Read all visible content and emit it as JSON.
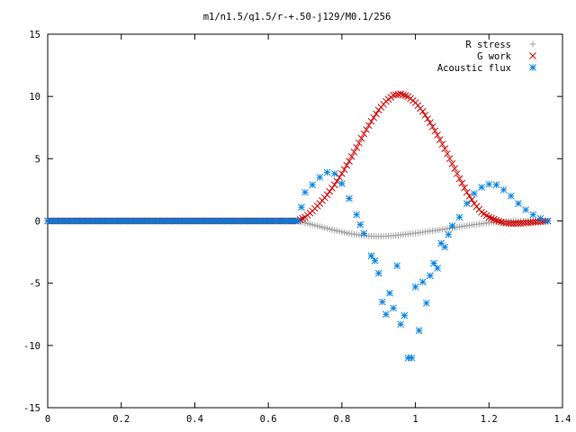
{
  "chart_data": {
    "type": "scatter",
    "title": "m1/n1.5/q1.5/r-+.50-j129/M0.1/256",
    "xlabel": "",
    "ylabel": "",
    "xlim": [
      0,
      1.4
    ],
    "ylim": [
      -15,
      15
    ],
    "x_ticks": [
      "0",
      "0.2",
      "0.4",
      "0.6",
      "0.8",
      "1",
      "1.2",
      "1.4"
    ],
    "y_ticks": [
      "15",
      "10",
      "5",
      "0",
      "-5",
      "-10",
      "-15"
    ],
    "x_tick_values": [
      0,
      0.2,
      0.4,
      0.6,
      0.8,
      1.0,
      1.2,
      1.4
    ],
    "y_tick_values": [
      15,
      10,
      5,
      0,
      -5,
      -10,
      -15
    ],
    "grid": false,
    "legend_position": "top-right",
    "series": [
      {
        "name": "R stress",
        "marker": "plus",
        "color": "#a0a0a0",
        "points": [
          [
            0.0,
            0
          ],
          [
            0.1,
            0
          ],
          [
            0.2,
            0
          ],
          [
            0.3,
            0
          ],
          [
            0.4,
            0
          ],
          [
            0.5,
            0
          ],
          [
            0.6,
            0
          ],
          [
            0.68,
            0
          ],
          [
            0.7,
            -0.15
          ],
          [
            0.72,
            -0.3
          ],
          [
            0.74,
            -0.45
          ],
          [
            0.76,
            -0.6
          ],
          [
            0.78,
            -0.75
          ],
          [
            0.8,
            -0.88
          ],
          [
            0.82,
            -1.0
          ],
          [
            0.84,
            -1.1
          ],
          [
            0.86,
            -1.18
          ],
          [
            0.88,
            -1.22
          ],
          [
            0.9,
            -1.25
          ],
          [
            0.92,
            -1.22
          ],
          [
            0.94,
            -1.18
          ],
          [
            0.96,
            -1.12
          ],
          [
            0.98,
            -1.05
          ],
          [
            1.0,
            -0.98
          ],
          [
            1.02,
            -0.9
          ],
          [
            1.04,
            -0.82
          ],
          [
            1.06,
            -0.74
          ],
          [
            1.08,
            -0.65
          ],
          [
            1.1,
            -0.56
          ],
          [
            1.12,
            -0.47
          ],
          [
            1.14,
            -0.38
          ],
          [
            1.16,
            -0.3
          ],
          [
            1.18,
            -0.22
          ],
          [
            1.2,
            -0.15
          ],
          [
            1.22,
            -0.1
          ],
          [
            1.24,
            -0.06
          ],
          [
            1.26,
            -0.03
          ],
          [
            1.28,
            -0.01
          ],
          [
            1.3,
            0
          ],
          [
            1.32,
            0
          ],
          [
            1.34,
            0
          ],
          [
            1.36,
            0.02
          ]
        ]
      },
      {
        "name": "G work",
        "marker": "cross",
        "color": "#cc0000",
        "points": [
          [
            0.0,
            0
          ],
          [
            0.1,
            0
          ],
          [
            0.2,
            0
          ],
          [
            0.3,
            0
          ],
          [
            0.4,
            0
          ],
          [
            0.5,
            0
          ],
          [
            0.6,
            0
          ],
          [
            0.68,
            0
          ],
          [
            0.7,
            0.3
          ],
          [
            0.72,
            0.8
          ],
          [
            0.74,
            1.4
          ],
          [
            0.76,
            2.1
          ],
          [
            0.78,
            2.9
          ],
          [
            0.8,
            3.8
          ],
          [
            0.82,
            4.8
          ],
          [
            0.84,
            5.9
          ],
          [
            0.86,
            7.0
          ],
          [
            0.88,
            8.0
          ],
          [
            0.9,
            8.9
          ],
          [
            0.92,
            9.6
          ],
          [
            0.94,
            10.1
          ],
          [
            0.96,
            10.2
          ],
          [
            0.98,
            10.0
          ],
          [
            1.0,
            9.5
          ],
          [
            1.02,
            8.8
          ],
          [
            1.04,
            7.9
          ],
          [
            1.06,
            6.9
          ],
          [
            1.08,
            5.8
          ],
          [
            1.1,
            4.6
          ],
          [
            1.12,
            3.4
          ],
          [
            1.14,
            2.3
          ],
          [
            1.16,
            1.4
          ],
          [
            1.18,
            0.7
          ],
          [
            1.2,
            0.3
          ],
          [
            1.22,
            0.05
          ],
          [
            1.24,
            -0.15
          ],
          [
            1.26,
            -0.2
          ],
          [
            1.28,
            -0.2
          ],
          [
            1.3,
            -0.15
          ],
          [
            1.32,
            -0.1
          ],
          [
            1.34,
            -0.05
          ],
          [
            1.36,
            0
          ]
        ]
      },
      {
        "name": "Acoustic flux",
        "marker": "star",
        "color": "#0080e0",
        "points": [
          [
            0.0,
            0
          ],
          [
            0.05,
            0
          ],
          [
            0.1,
            0
          ],
          [
            0.15,
            0
          ],
          [
            0.2,
            0
          ],
          [
            0.25,
            0
          ],
          [
            0.3,
            0
          ],
          [
            0.35,
            0
          ],
          [
            0.4,
            0
          ],
          [
            0.45,
            0
          ],
          [
            0.5,
            0
          ],
          [
            0.55,
            0
          ],
          [
            0.6,
            0
          ],
          [
            0.65,
            0
          ],
          [
            0.68,
            0
          ],
          [
            0.69,
            1.1
          ],
          [
            0.7,
            2.3
          ],
          [
            0.72,
            2.9
          ],
          [
            0.74,
            3.5
          ],
          [
            0.76,
            3.9
          ],
          [
            0.78,
            3.8
          ],
          [
            0.8,
            3.0
          ],
          [
            0.82,
            1.8
          ],
          [
            0.84,
            0.5
          ],
          [
            0.85,
            -0.3
          ],
          [
            0.86,
            -1.0
          ],
          [
            0.88,
            -2.8
          ],
          [
            0.89,
            -3.2
          ],
          [
            0.9,
            -4.2
          ],
          [
            0.91,
            -6.5
          ],
          [
            0.92,
            -7.5
          ],
          [
            0.93,
            -5.8
          ],
          [
            0.94,
            -7.0
          ],
          [
            0.95,
            -3.6
          ],
          [
            0.96,
            -8.3
          ],
          [
            0.97,
            -7.6
          ],
          [
            0.98,
            -11.0
          ],
          [
            0.99,
            -11.0
          ],
          [
            1.0,
            -5.3
          ],
          [
            1.01,
            -8.8
          ],
          [
            1.02,
            -4.9
          ],
          [
            1.03,
            -6.6
          ],
          [
            1.04,
            -4.4
          ],
          [
            1.05,
            -3.4
          ],
          [
            1.06,
            -3.8
          ],
          [
            1.07,
            -1.8
          ],
          [
            1.08,
            -2.1
          ],
          [
            1.09,
            -1.1
          ],
          [
            1.1,
            -0.4
          ],
          [
            1.12,
            0.3
          ],
          [
            1.14,
            1.4
          ],
          [
            1.16,
            2.2
          ],
          [
            1.18,
            2.7
          ],
          [
            1.2,
            2.95
          ],
          [
            1.22,
            2.9
          ],
          [
            1.24,
            2.5
          ],
          [
            1.26,
            2.0
          ],
          [
            1.28,
            1.4
          ],
          [
            1.3,
            0.9
          ],
          [
            1.32,
            0.5
          ],
          [
            1.34,
            0.2
          ],
          [
            1.36,
            0
          ]
        ]
      }
    ]
  }
}
